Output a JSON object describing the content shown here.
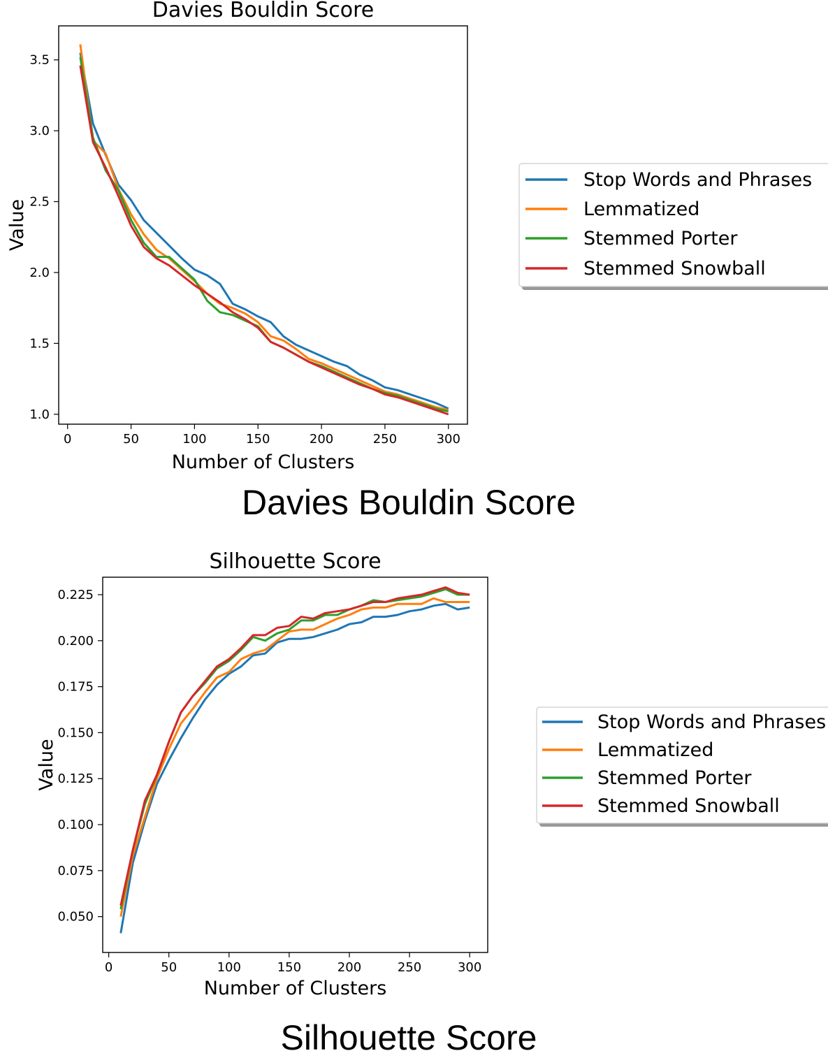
{
  "figure_captions": {
    "davies": "Davies Bouldin Score",
    "silhouette": "Silhouette Score"
  },
  "colors": {
    "Stop Words and Phrases": "#1f77b4",
    "Lemmatized": "#ff7f0e",
    "Stemmed Porter": "#2ca02c",
    "Stemmed Snowball": "#d62728"
  },
  "chart_data": [
    {
      "type": "line",
      "title": "Davies Bouldin Score",
      "xlabel": "Number of Clusters",
      "ylabel": "Value",
      "xlim": [
        -7,
        315
      ],
      "ylim": [
        0.93,
        3.74
      ],
      "xticks": [
        0,
        50,
        100,
        150,
        200,
        250,
        300
      ],
      "yticks": [
        1.0,
        1.5,
        2.0,
        2.5,
        3.0,
        3.5
      ],
      "legend_position": "right",
      "x": [
        10,
        20,
        30,
        40,
        50,
        60,
        70,
        80,
        90,
        100,
        110,
        120,
        130,
        140,
        150,
        160,
        170,
        180,
        190,
        200,
        210,
        220,
        230,
        240,
        250,
        260,
        270,
        280,
        290,
        300
      ],
      "series": [
        {
          "name": "Stop Words and Phrases",
          "values": [
            3.55,
            3.05,
            2.83,
            2.62,
            2.51,
            2.37,
            2.28,
            2.19,
            2.1,
            2.02,
            1.98,
            1.92,
            1.78,
            1.74,
            1.69,
            1.65,
            1.55,
            1.49,
            1.45,
            1.41,
            1.37,
            1.34,
            1.28,
            1.24,
            1.19,
            1.17,
            1.14,
            1.11,
            1.08,
            1.04
          ]
        },
        {
          "name": "Lemmatized",
          "values": [
            3.61,
            2.93,
            2.84,
            2.59,
            2.41,
            2.27,
            2.16,
            2.1,
            2.02,
            1.94,
            1.85,
            1.78,
            1.75,
            1.71,
            1.65,
            1.55,
            1.52,
            1.46,
            1.39,
            1.36,
            1.32,
            1.28,
            1.24,
            1.2,
            1.16,
            1.14,
            1.11,
            1.08,
            1.05,
            1.03
          ]
        },
        {
          "name": "Stemmed Porter",
          "values": [
            3.52,
            2.95,
            2.72,
            2.58,
            2.37,
            2.21,
            2.11,
            2.11,
            2.03,
            1.95,
            1.8,
            1.72,
            1.7,
            1.66,
            1.62,
            1.51,
            1.47,
            1.42,
            1.37,
            1.34,
            1.3,
            1.26,
            1.22,
            1.18,
            1.15,
            1.13,
            1.1,
            1.07,
            1.04,
            1.02
          ]
        },
        {
          "name": "Stemmed Snowball",
          "values": [
            3.46,
            2.92,
            2.74,
            2.54,
            2.33,
            2.18,
            2.1,
            2.05,
            1.98,
            1.91,
            1.85,
            1.79,
            1.72,
            1.67,
            1.61,
            1.51,
            1.47,
            1.42,
            1.37,
            1.33,
            1.29,
            1.25,
            1.21,
            1.18,
            1.14,
            1.12,
            1.09,
            1.06,
            1.03,
            1.0
          ]
        }
      ]
    },
    {
      "type": "line",
      "title": "Silhouette Score",
      "xlabel": "Number of Clusters",
      "ylabel": "Value",
      "xlim": [
        -5,
        315
      ],
      "ylim": [
        0.0305,
        0.2345
      ],
      "xticks": [
        0,
        50,
        100,
        150,
        200,
        250,
        300
      ],
      "yticks": [
        0.05,
        0.075,
        0.1,
        0.125,
        0.15,
        0.175,
        0.2,
        0.225
      ],
      "ytick_labels": [
        "0.050",
        "0.075",
        "0.100",
        "0.125",
        "0.150",
        "0.175",
        "0.200",
        "0.225"
      ],
      "legend_position": "right",
      "x": [
        10,
        20,
        30,
        40,
        50,
        60,
        70,
        80,
        90,
        100,
        110,
        120,
        130,
        140,
        150,
        160,
        170,
        180,
        190,
        200,
        210,
        220,
        230,
        240,
        250,
        260,
        270,
        280,
        290,
        300
      ],
      "series": [
        {
          "name": "Stop Words and Phrases",
          "values": [
            0.041,
            0.079,
            0.102,
            0.122,
            0.135,
            0.147,
            0.158,
            0.168,
            0.176,
            0.182,
            0.186,
            0.192,
            0.193,
            0.199,
            0.201,
            0.201,
            0.202,
            0.204,
            0.206,
            0.209,
            0.21,
            0.213,
            0.213,
            0.214,
            0.216,
            0.217,
            0.219,
            0.22,
            0.217,
            0.218
          ]
        },
        {
          "name": "Lemmatized",
          "values": [
            0.05,
            0.083,
            0.104,
            0.125,
            0.141,
            0.155,
            0.163,
            0.172,
            0.18,
            0.183,
            0.19,
            0.193,
            0.195,
            0.2,
            0.205,
            0.206,
            0.206,
            0.209,
            0.212,
            0.214,
            0.217,
            0.218,
            0.218,
            0.22,
            0.22,
            0.22,
            0.223,
            0.221,
            0.221,
            0.221
          ]
        },
        {
          "name": "Stemmed Porter",
          "values": [
            0.054,
            0.086,
            0.111,
            0.127,
            0.145,
            0.161,
            0.17,
            0.177,
            0.185,
            0.189,
            0.195,
            0.202,
            0.2,
            0.204,
            0.206,
            0.211,
            0.211,
            0.214,
            0.214,
            0.217,
            0.219,
            0.222,
            0.221,
            0.222,
            0.223,
            0.224,
            0.226,
            0.228,
            0.225,
            0.225
          ]
        },
        {
          "name": "Stemmed Snowball",
          "values": [
            0.056,
            0.086,
            0.113,
            0.127,
            0.145,
            0.161,
            0.17,
            0.178,
            0.186,
            0.19,
            0.196,
            0.203,
            0.203,
            0.207,
            0.208,
            0.213,
            0.212,
            0.215,
            0.216,
            0.217,
            0.219,
            0.221,
            0.221,
            0.223,
            0.224,
            0.225,
            0.227,
            0.229,
            0.226,
            0.225
          ]
        }
      ]
    }
  ]
}
